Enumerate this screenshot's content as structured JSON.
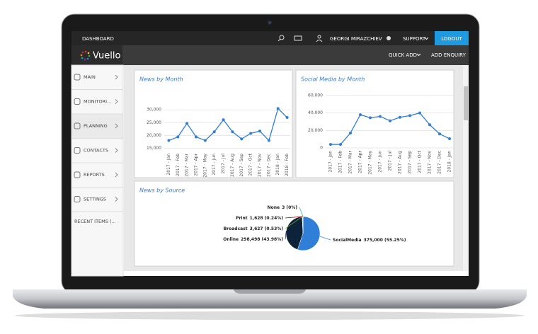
{
  "topbar": {
    "title": "DASHBOARD",
    "user": "GEORGI MIRAZCHIEV",
    "support": "SUPPORT",
    "logout": "LOGOUT"
  },
  "navbar": {
    "brand": "Vuello",
    "quick_add": "QUICK ADD",
    "add_enquiry": "ADD ENQUIRY"
  },
  "sidebar": {
    "items": [
      "MAIN",
      "MONITORI...",
      "PLANNING",
      "CONTACTS",
      "REPORTS",
      "SETTINGS"
    ],
    "recent": "RECENT ITEMS (..."
  },
  "chart_data": [
    {
      "type": "line",
      "title": "News by Month",
      "categories": [
        "2017 - Jan",
        "2017 - Feb",
        "2017 - Mar",
        "2017 - Apr",
        "2017 - May",
        "2017 - Jun",
        "2017 - Jul",
        "2017 - Aug",
        "2017 - Sep",
        "2017 - Oct",
        "2017 - Nov",
        "2017 - Dec",
        "2018 - Jan",
        "2018 - Feb"
      ],
      "values": [
        18000,
        19400,
        24700,
        19400,
        18000,
        21400,
        26100,
        21400,
        18600,
        20800,
        21700,
        18000,
        30500,
        27000
      ],
      "color": "#2f7ed8",
      "ylim": [
        14000,
        32000
      ],
      "yticks": [
        {
          "value": 15000,
          "label": "15,000"
        },
        {
          "value": 20000,
          "label": "20,000"
        },
        {
          "value": 25000,
          "label": "25,000"
        },
        {
          "value": 30000,
          "label": "30,000"
        }
      ],
      "grid": true
    },
    {
      "type": "line",
      "title": "Social Media by Month",
      "categories": [
        "2017 - Jan",
        "2017 - Feb",
        "2017 - Mar",
        "2017 - Apr",
        "2017 - May",
        "2017 - Jun",
        "2017 - Jul",
        "2017 - Aug",
        "2017 - Sep",
        "2017 - Oct",
        "2017 - Nov",
        "2017 - Dec",
        "2018 - Jan"
      ],
      "values": [
        4000,
        4000,
        17000,
        38000,
        34500,
        36000,
        31000,
        35000,
        37000,
        40000,
        26500,
        16000,
        10500
      ],
      "color": "#2f7ed8",
      "ylim": [
        0,
        64000
      ],
      "yticks": [
        0,
        {
          "value": 20000,
          "label": "20,000"
        },
        {
          "value": 40000,
          "label": "40,000"
        },
        {
          "value": 60000,
          "label": "60,000"
        }
      ],
      "grid": true
    },
    {
      "type": "pie",
      "title": "News by Source",
      "categories": [
        "SocialMedia",
        "Online",
        "Broadcast",
        "Print",
        "None"
      ],
      "values": [
        375000,
        298498,
        3627,
        1628,
        3
      ],
      "value_labels": [
        "375,000 (55.25%)",
        "298,498 (43.98%)",
        "3,627 (0.53%)",
        "1,628 (0.24%)",
        "3 (0%)"
      ],
      "colors": [
        "#2f7ed8",
        "#0d233a",
        "#8bbc21",
        "#910000",
        "#1aadce"
      ]
    }
  ]
}
